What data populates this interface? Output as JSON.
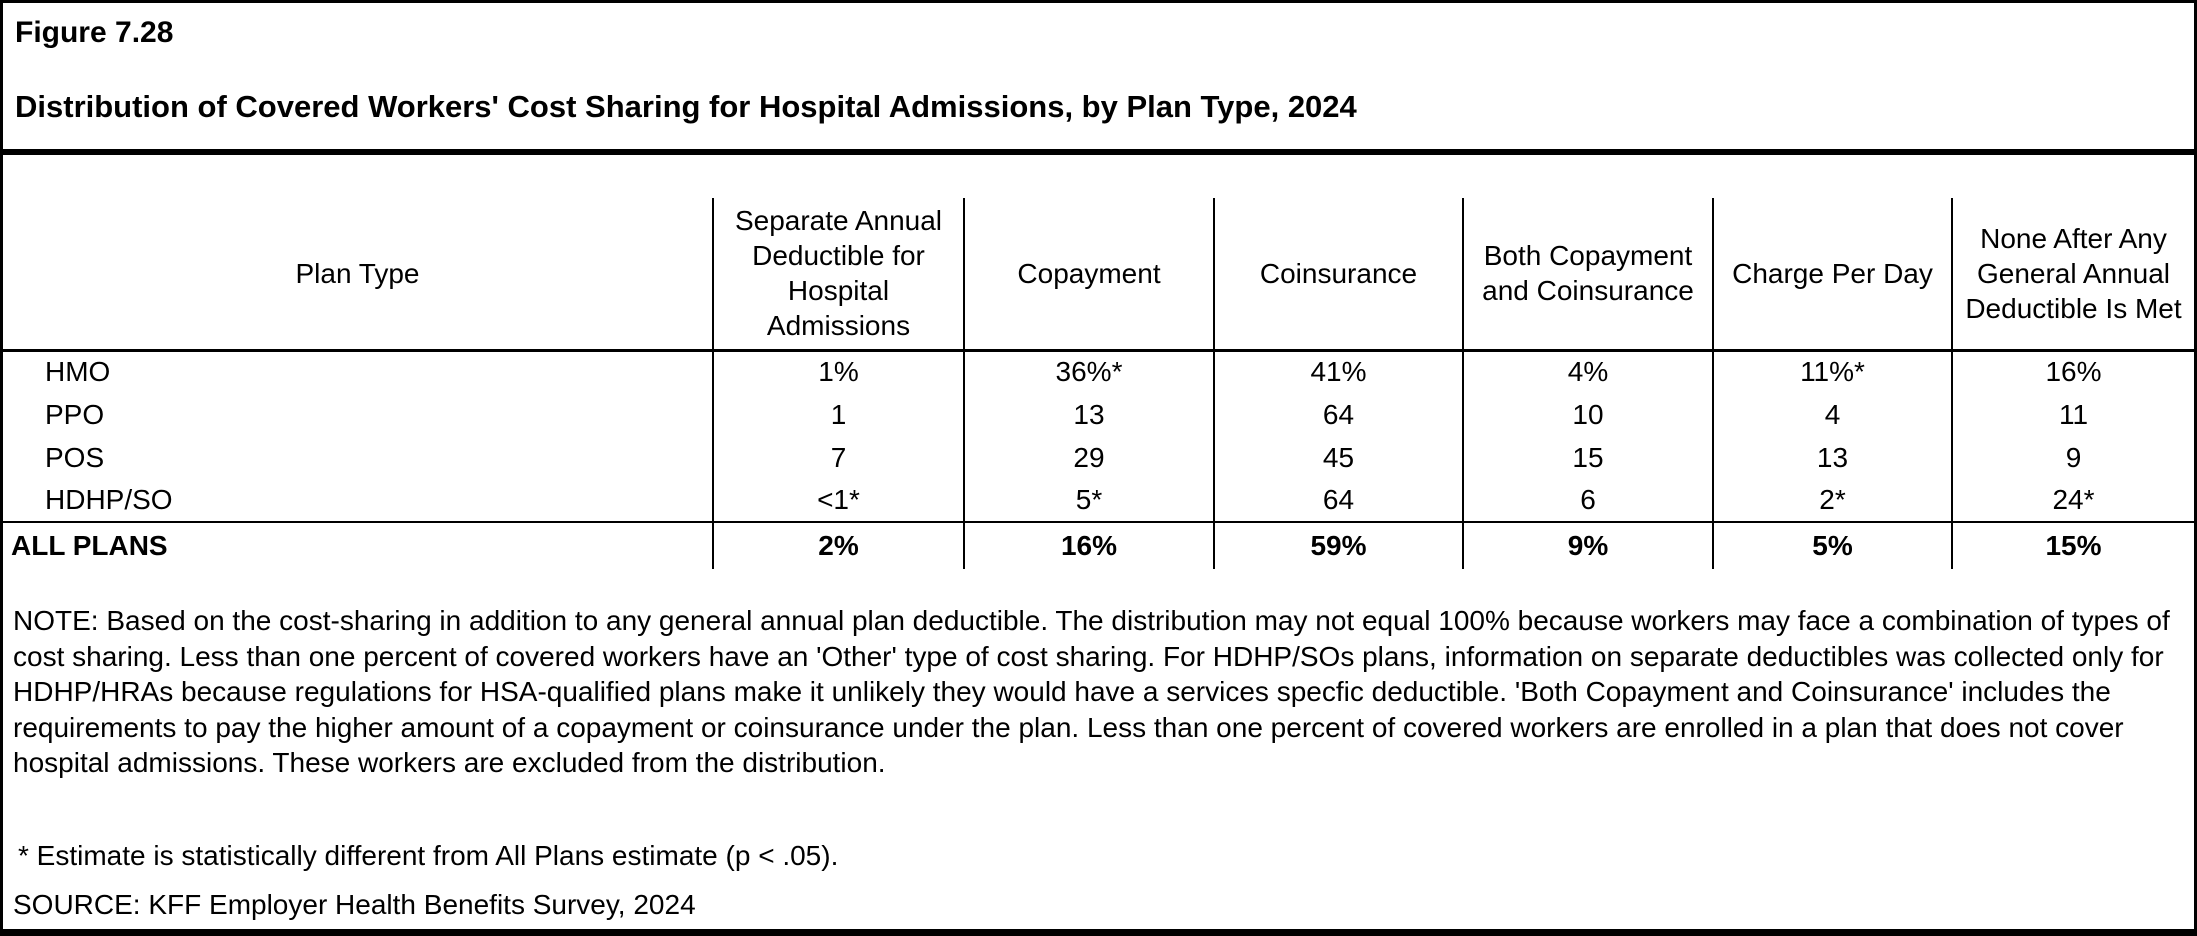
{
  "figure": {
    "number": "Figure 7.28",
    "title": "Distribution of Covered Workers' Cost Sharing for Hospital Admissions, by Plan Type, 2024"
  },
  "chart_data": {
    "type": "table",
    "title": "Distribution of Covered Workers' Cost Sharing for Hospital Admissions, by Plan Type, 2024",
    "columns": [
      "Plan Type",
      "Separate Annual Deductible for Hospital Admissions",
      "Copayment",
      "Coinsurance",
      "Both Copayment and Coinsurance",
      "Charge Per Day",
      "None After Any General Annual Deductible Is Met"
    ],
    "rows": [
      {
        "label": "HMO",
        "values": [
          "1%",
          "36%*",
          "41%",
          "4%",
          "11%*",
          "16%"
        ]
      },
      {
        "label": "PPO",
        "values": [
          "1",
          "13",
          "64",
          "10",
          "4",
          "11"
        ]
      },
      {
        "label": "POS",
        "values": [
          "7",
          "29",
          "45",
          "15",
          "13",
          "9"
        ]
      },
      {
        "label": "HDHP/SO",
        "values": [
          "<1*",
          "5*",
          "64",
          "6",
          "2*",
          "24*"
        ]
      }
    ],
    "total_row": {
      "label": "ALL PLANS",
      "values": [
        "2%",
        "16%",
        "59%",
        "9%",
        "5%",
        "15%"
      ]
    }
  },
  "table": {
    "headers": {
      "plan_type": "Plan Type",
      "separate_deductible": "Separate Annual Deductible for Hospital Admissions",
      "copayment": "Copayment",
      "coinsurance": "Coinsurance",
      "both": "Both Copayment and Coinsurance",
      "charge_per_day": "Charge Per Day",
      "none_after": "None After Any General Annual Deductible Is Met"
    },
    "rows": [
      {
        "label": "HMO",
        "values": [
          "1%",
          "36%*",
          "41%",
          "4%",
          "11%*",
          "16%"
        ]
      },
      {
        "label": "PPO",
        "values": [
          "1",
          "13",
          "64",
          "10",
          "4",
          "11"
        ]
      },
      {
        "label": "POS",
        "values": [
          "7",
          "29",
          "45",
          "15",
          "13",
          "9"
        ]
      },
      {
        "label": "HDHP/SO",
        "values": [
          "<1*",
          "5*",
          "64",
          "6",
          "2*",
          "24*"
        ]
      }
    ],
    "total_row": {
      "label": "ALL PLANS",
      "values": [
        "2%",
        "16%",
        "59%",
        "9%",
        "5%",
        "15%"
      ]
    }
  },
  "note": "NOTE: Based on the cost-sharing in addition to any general annual plan deductible. The distribution may not equal 100% because workers may face a combination of types of cost sharing. Less than one percent of covered workers have an 'Other' type of cost sharing. For HDHP/SOs plans, information on separate deductibles was collected only for HDHP/HRAs because regulations for HSA-qualified plans make it unlikely they would have a services specfic deductible. 'Both Copayment and Coinsurance' includes the requirements to pay the higher amount of a copayment or coinsurance under the plan. Less than one percent of covered workers are enrolled in a plan that does not cover hospital admissions. These workers are excluded from the distribution.",
  "footnote": "* Estimate is statistically different from All Plans estimate (p < .05).",
  "source": "SOURCE: KFF Employer Health Benefits Survey, 2024"
}
